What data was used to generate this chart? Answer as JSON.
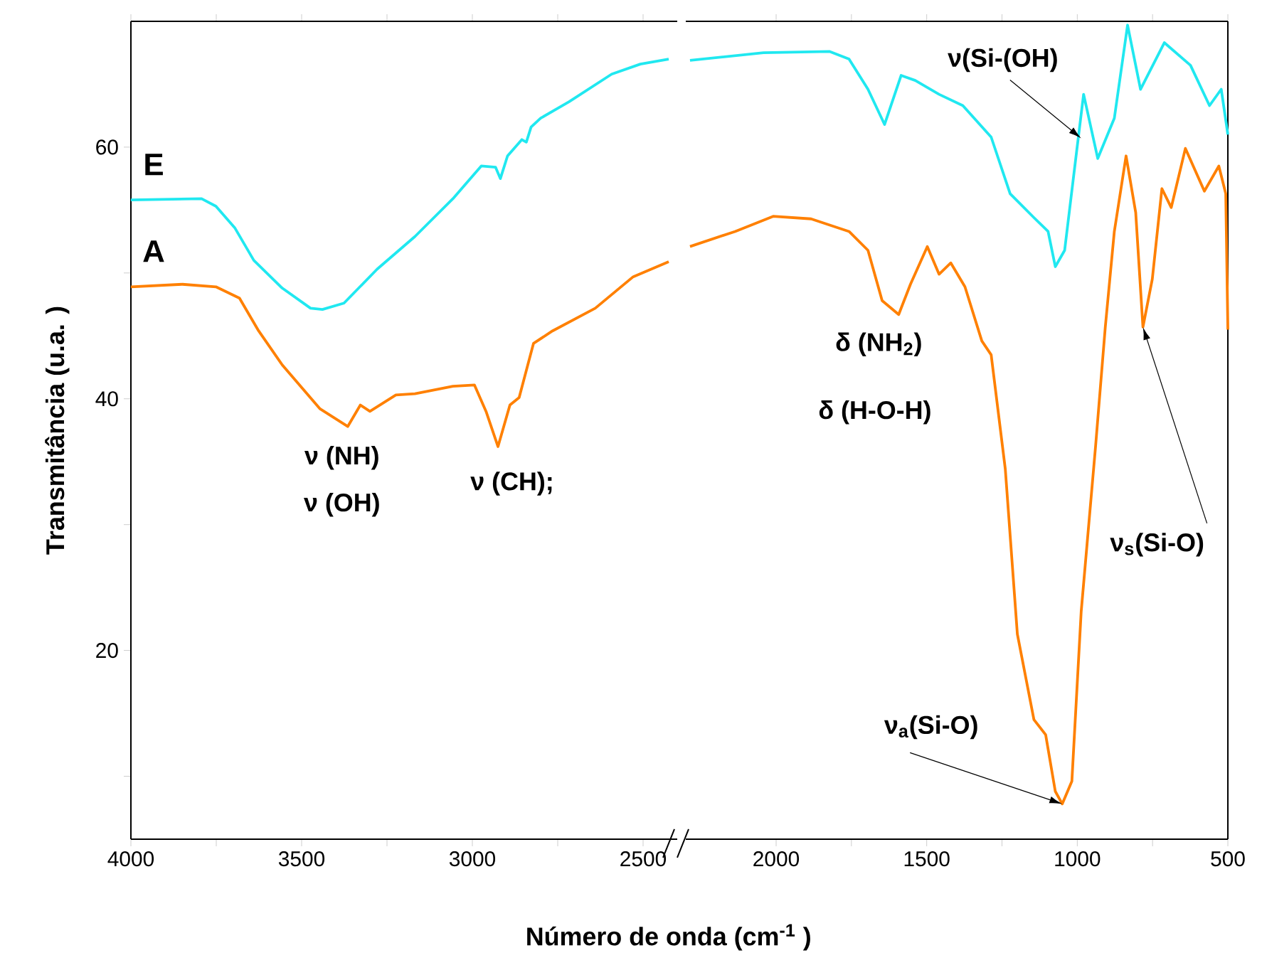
{
  "chart_data": [
    {
      "type": "line",
      "ylabel": "Transmitância (u.a. )",
      "xlabel": "Número de onda (cm$^{-1}$ )",
      "xlim": [
        4000,
        2400
      ],
      "ylim": [
        5,
        70
      ],
      "xticks": [
        4000,
        {
          "value": 3750,
          "label": null
        },
        3500,
        {
          "value": 3250,
          "label": null
        },
        3000,
        {
          "value": 2750,
          "label": null
        },
        2500
      ],
      "yticks": [
        {
          "value": 10,
          "label": null
        },
        20,
        {
          "value": 30,
          "label": null
        },
        40,
        {
          "value": 50,
          "label": null
        },
        60
      ],
      "series": [
        {
          "name": "E",
          "color": "#20e8f0",
          "x": [
            4000,
            3793,
            3751,
            3696,
            3640,
            3557,
            3474,
            3439,
            3376,
            3279,
            3168,
            3057,
            2974,
            2932,
            2918,
            2897,
            2855,
            2842,
            2828,
            2800,
            2717,
            2592,
            2508,
            2425
          ],
          "values": [
            55.8,
            55.9,
            55.3,
            53.6,
            51.0,
            48.8,
            47.2,
            47.1,
            47.6,
            50.3,
            52.9,
            55.9,
            58.5,
            58.4,
            57.5,
            59.3,
            60.6,
            60.4,
            61.6,
            62.3,
            63.6,
            65.8,
            66.6,
            67.0
          ]
        },
        {
          "name": "A",
          "color": "#ff8000",
          "x": [
            4000,
            3849,
            3751,
            3682,
            3626,
            3557,
            3446,
            3365,
            3328,
            3300,
            3224,
            3168,
            3057,
            2994,
            2960,
            2925,
            2890,
            2863,
            2821,
            2765,
            2640,
            2529,
            2425
          ],
          "values": [
            48.9,
            49.1,
            48.9,
            48.0,
            45.4,
            42.7,
            39.2,
            37.8,
            39.5,
            39.0,
            40.3,
            40.4,
            41.0,
            41.1,
            39.0,
            36.2,
            39.5,
            40.1,
            44.4,
            45.4,
            47.2,
            49.7,
            50.9
          ]
        }
      ],
      "annotations": [
        {
          "text": "ν (NH)",
          "x": 3365,
          "y": 37.8
        },
        {
          "text": "ν (OH)",
          "x": 3365,
          "y": 37.8
        },
        {
          "text": "ν (CH);",
          "x": 2925,
          "y": 36.2
        }
      ]
    },
    {
      "type": "line",
      "xlim": [
        2300,
        500
      ],
      "ylim": [
        5,
        70
      ],
      "tick_labels": "x",
      "xticks": [
        2000,
        {
          "value": 1750,
          "label": null
        },
        1500,
        {
          "value": 1250,
          "label": null
        },
        1000,
        {
          "value": 750,
          "label": null
        },
        500
      ],
      "series": [
        {
          "color": "#20e8f0",
          "x": [
            2286,
            2042,
            1822,
            1758,
            1695,
            1640,
            1585,
            1538,
            1459,
            1380,
            1286,
            1223,
            1144,
            1097,
            1073,
            1042,
            1002,
            979,
            932,
            877,
            833,
            790,
            711,
            624,
            561,
            522,
            500
          ],
          "values": [
            66.9,
            67.5,
            67.6,
            67.0,
            64.6,
            61.8,
            65.7,
            65.3,
            64.2,
            63.3,
            60.8,
            56.3,
            54.4,
            53.3,
            50.5,
            51.8,
            59.7,
            64.2,
            59.1,
            62.3,
            69.7,
            64.6,
            68.3,
            66.5,
            63.3,
            64.6,
            61.0
          ]
        },
        {
          "color": "#ff8000",
          "x": [
            2286,
            2136,
            2010,
            1884,
            1758,
            1695,
            1648,
            1593,
            1554,
            1498,
            1459,
            1420,
            1373,
            1317,
            1286,
            1239,
            1199,
            1144,
            1105,
            1073,
            1050,
            1018,
            987,
            939,
            907,
            877,
            838,
            806,
            782,
            751,
            719,
            688,
            641,
            578,
            530,
            507,
            500
          ],
          "values": [
            52.1,
            53.3,
            54.5,
            54.3,
            53.3,
            51.8,
            47.8,
            46.7,
            49.1,
            52.1,
            49.9,
            50.8,
            48.9,
            44.6,
            43.5,
            34.4,
            21.3,
            14.5,
            13.3,
            8.8,
            7.8,
            9.6,
            23.1,
            36.3,
            45.7,
            53.3,
            59.3,
            54.8,
            45.7,
            49.5,
            56.7,
            55.2,
            59.9,
            56.5,
            58.5,
            56.3,
            45.5
          ]
        }
      ],
      "annotations": [
        {
          "text": "δ (NH$_{2}$)",
          "x": 1593,
          "y": 46.7
        },
        "δ (H-O-H)",
        {
          "text": "ν(Si-(OH)",
          "x": 987,
          "y": 60.7
        },
        {
          "text": "ν$_{a}$(Si-O)",
          "x": 1050,
          "y": 7.8
        },
        {
          "text": "ν$_{s}$(Si-O)",
          "x": 782,
          "y": 45.7
        }
      ]
    }
  ]
}
